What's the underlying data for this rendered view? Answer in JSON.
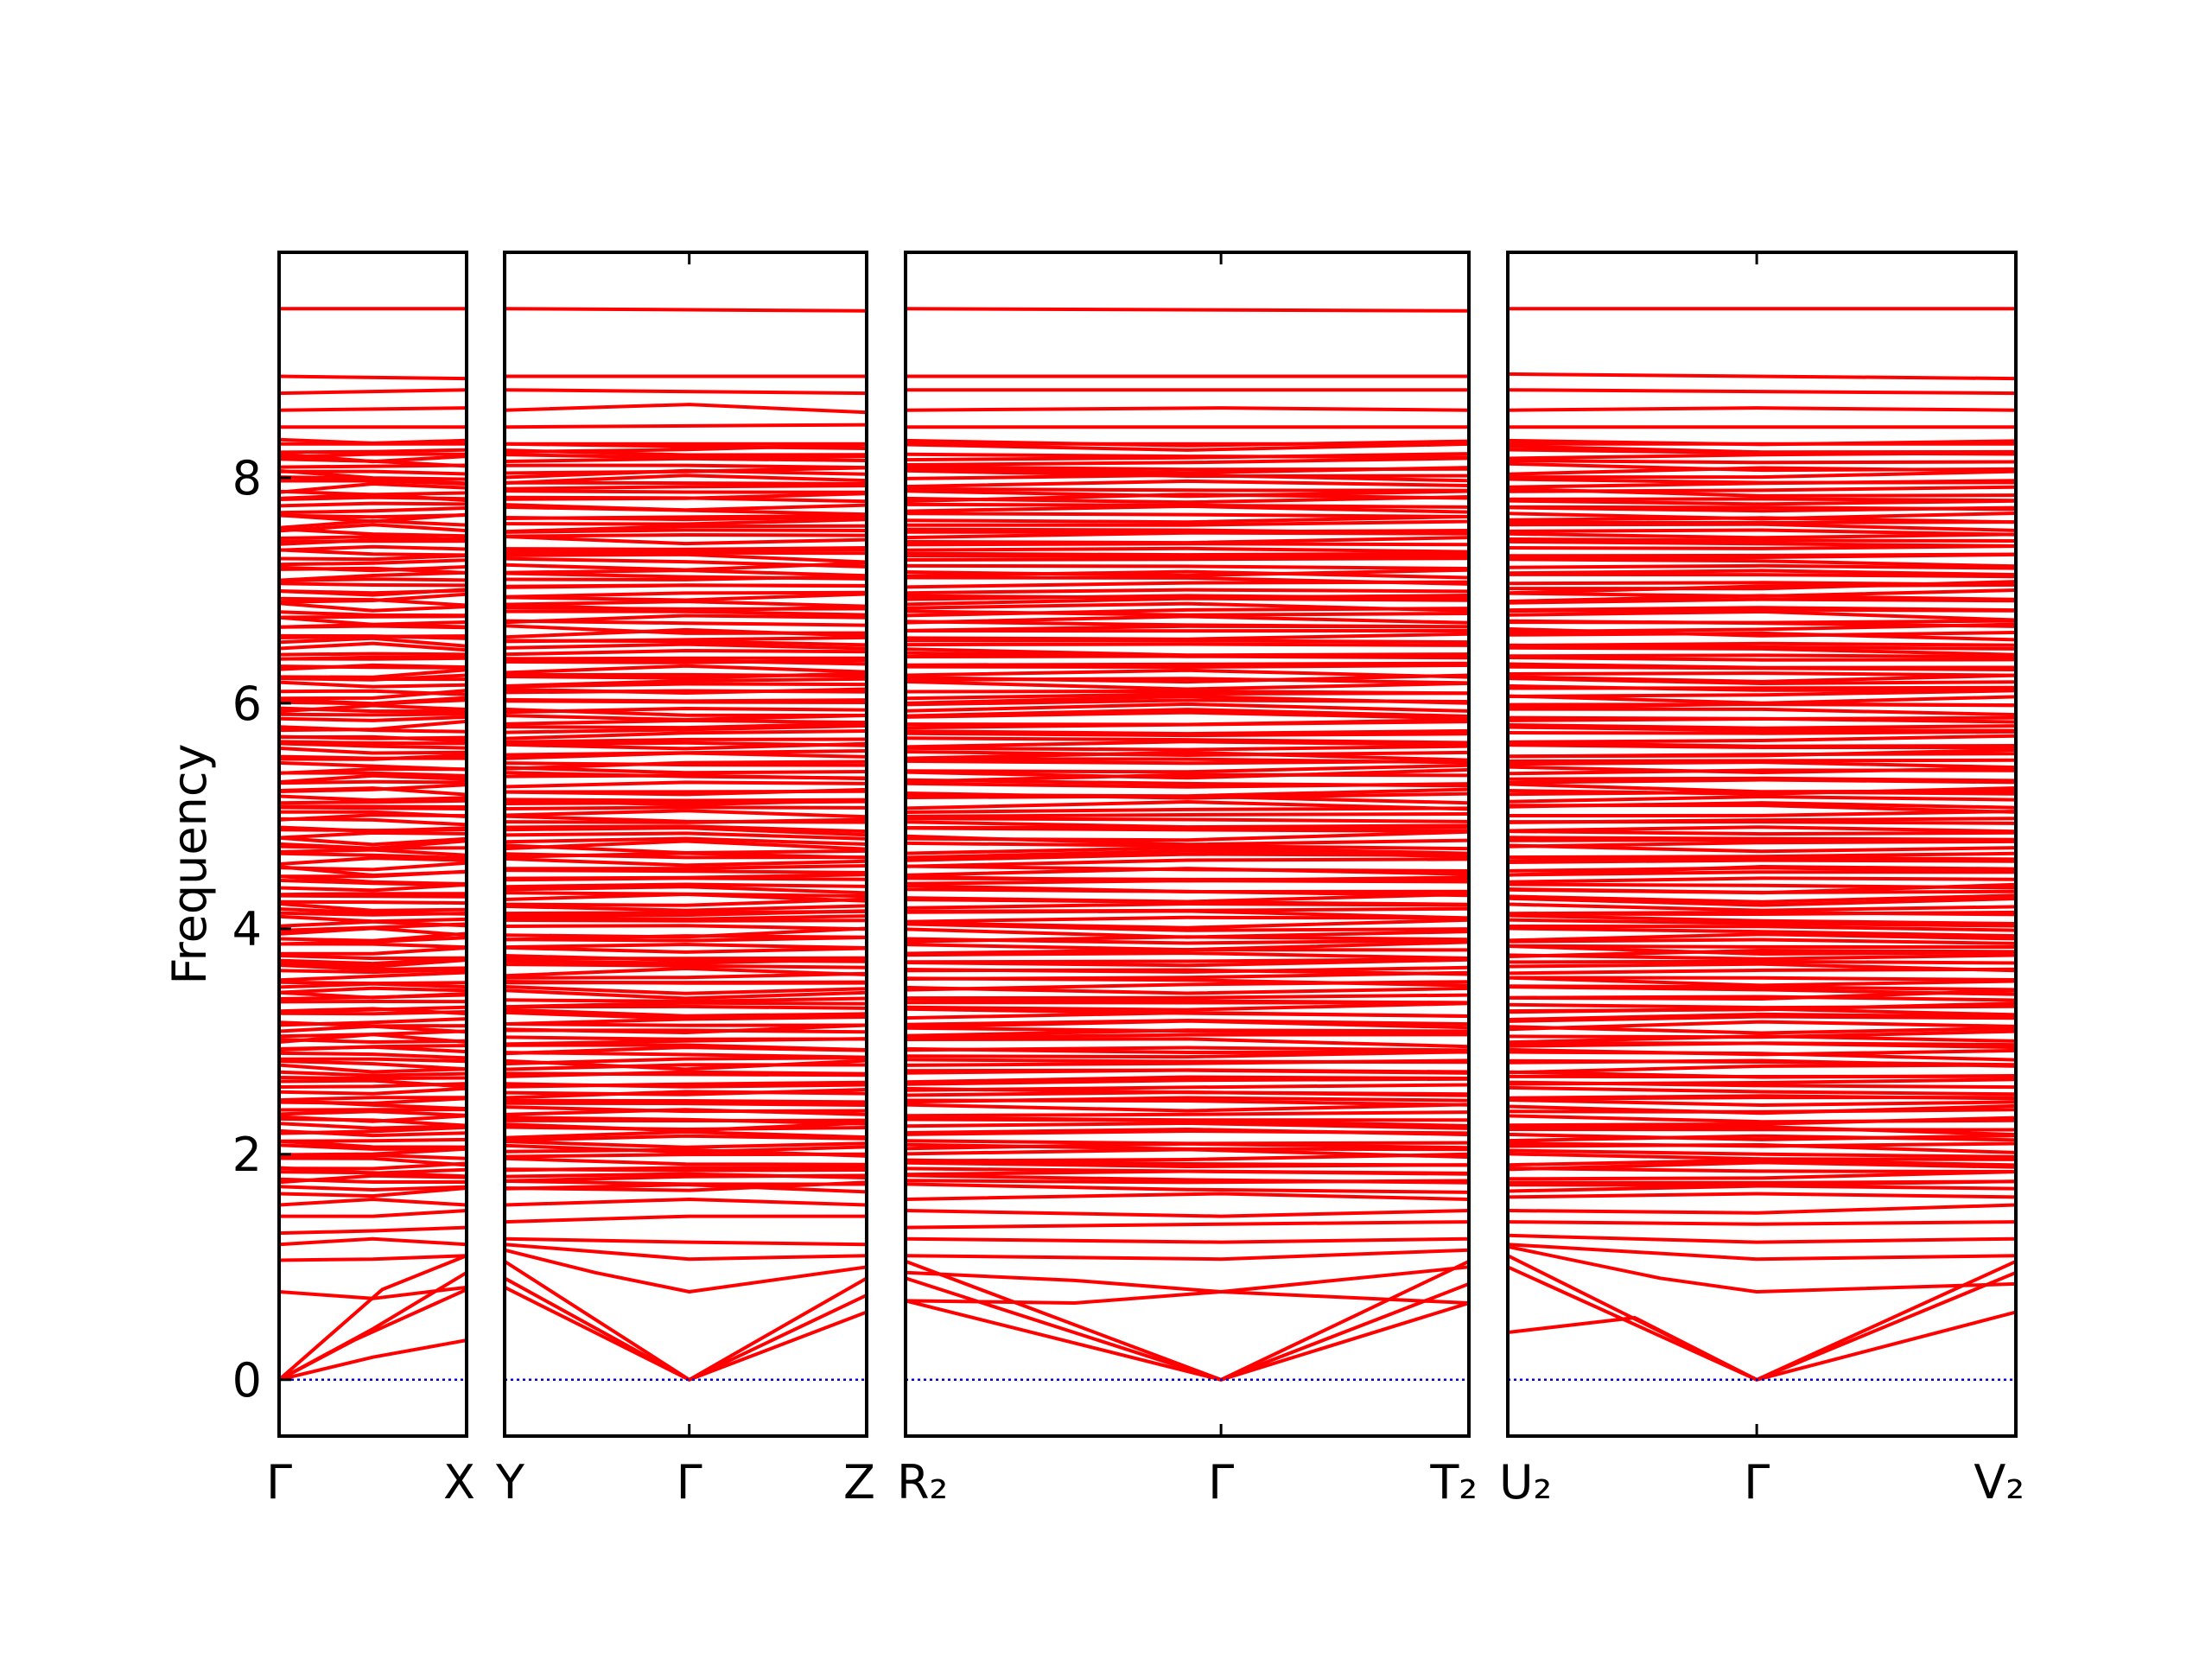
{
  "chart_data": {
    "type": "line",
    "title": "",
    "ylabel": "Frequency",
    "ylim": [
      -0.5,
      10.0
    ],
    "yticks": [
      0,
      2,
      4,
      6,
      8
    ],
    "yticklabels": [
      "0",
      "2",
      "4",
      "6",
      "8"
    ],
    "grid": false,
    "legend": "none",
    "colors": {
      "bands": "#ff0000",
      "zero_line": "#0000cc",
      "axes": "#000000"
    },
    "panels": [
      {
        "name": "panel-1",
        "path": [
          "Γ",
          "X"
        ],
        "ticks": [
          {
            "x": 0,
            "label": "Γ"
          },
          {
            "x": 1,
            "label": "X"
          }
        ],
        "bands": [
          [
            [
              0,
              0
            ],
            [
              0.5,
              0.45
            ],
            [
              1,
              0.95
            ]
          ],
          [
            [
              0,
              0
            ],
            [
              0.5,
              0.2
            ],
            [
              1,
              0.35
            ]
          ],
          [
            [
              0,
              0
            ],
            [
              0.4,
              0.35
            ],
            [
              1,
              0.8
            ]
          ],
          [
            [
              0,
              0
            ],
            [
              0.55,
              0.8
            ],
            [
              1,
              1.1
            ]
          ],
          [
            [
              0,
              0.78
            ],
            [
              0.5,
              0.72
            ],
            [
              1,
              0.82
            ]
          ],
          [
            [
              0,
              1.06
            ],
            [
              0.5,
              1.07
            ],
            [
              1,
              1.1
            ]
          ],
          [
            [
              0,
              1.2
            ],
            [
              0.5,
              1.25
            ],
            [
              1,
              1.2
            ]
          ],
          [
            [
              0,
              1.3
            ],
            [
              0.5,
              1.32
            ],
            [
              1,
              1.35
            ]
          ],
          [
            [
              0,
              1.45
            ],
            [
              0.5,
              1.45
            ],
            [
              1,
              1.5
            ]
          ],
          [
            [
              0,
              1.55
            ],
            [
              0.5,
              1.6
            ],
            [
              1,
              1.55
            ]
          ],
          [
            [
              0,
              1.65
            ],
            [
              0.5,
              1.63
            ],
            [
              1,
              1.7
            ]
          ],
          [
            [
              0,
              8.9
            ],
            [
              1,
              8.88
            ]
          ],
          [
            [
              0,
              8.75
            ],
            [
              1,
              8.78
            ]
          ],
          [
            [
              0,
              8.6
            ],
            [
              1,
              8.62
            ]
          ],
          [
            [
              0,
              8.45
            ],
            [
              1,
              8.45
            ]
          ],
          [
            [
              0,
              8.3
            ],
            [
              1,
              8.3
            ]
          ],
          [
            [
              0,
              9.5
            ],
            [
              1,
              9.5
            ]
          ]
        ]
      },
      {
        "name": "panel-2",
        "path": [
          "Y",
          "Γ",
          "Z"
        ],
        "ticks": [
          {
            "x": 0,
            "label": "Y"
          },
          {
            "x": 0.51,
            "label": "Γ"
          },
          {
            "x": 1,
            "label": "Z"
          }
        ],
        "bands": [
          [
            [
              0,
              0.82
            ],
            [
              0.51,
              0
            ],
            [
              1,
              0.6
            ]
          ],
          [
            [
              0,
              0.9
            ],
            [
              0.51,
              0
            ],
            [
              1,
              0.75
            ]
          ],
          [
            [
              0,
              1.05
            ],
            [
              0.51,
              0
            ],
            [
              1,
              0.9
            ]
          ],
          [
            [
              0,
              1.15
            ],
            [
              0.25,
              0.95
            ],
            [
              0.51,
              0.78
            ],
            [
              1,
              1.0
            ]
          ],
          [
            [
              0,
              1.2
            ],
            [
              0.51,
              1.07
            ],
            [
              1,
              1.1
            ]
          ],
          [
            [
              0,
              1.25
            ],
            [
              0.51,
              1.22
            ],
            [
              1,
              1.2
            ]
          ],
          [
            [
              0,
              1.4
            ],
            [
              0.51,
              1.45
            ],
            [
              1,
              1.45
            ]
          ],
          [
            [
              0,
              1.55
            ],
            [
              0.51,
              1.6
            ],
            [
              1,
              1.55
            ]
          ],
          [
            [
              0,
              1.7
            ],
            [
              0.51,
              1.68
            ],
            [
              1,
              1.75
            ]
          ],
          [
            [
              0,
              8.9
            ],
            [
              1,
              8.9
            ]
          ],
          [
            [
              0,
              8.78
            ],
            [
              1,
              8.75
            ]
          ],
          [
            [
              0,
              8.6
            ],
            [
              0.51,
              8.65
            ],
            [
              1,
              8.58
            ]
          ],
          [
            [
              0,
              8.45
            ],
            [
              1,
              8.47
            ]
          ],
          [
            [
              0,
              8.3
            ],
            [
              1,
              8.3
            ]
          ],
          [
            [
              0,
              9.5
            ],
            [
              1,
              9.48
            ]
          ]
        ]
      },
      {
        "name": "panel-3",
        "path": [
          "R₂",
          "Γ",
          "T₂"
        ],
        "ticks": [
          {
            "x": 0,
            "label": "R₂"
          },
          {
            "x": 0.56,
            "label": "Γ"
          },
          {
            "x": 1,
            "label": "T₂"
          }
        ],
        "bands": [
          [
            [
              0,
              0.7
            ],
            [
              0.56,
              0
            ],
            [
              1,
              0.68
            ]
          ],
          [
            [
              0,
              0.9
            ],
            [
              0.56,
              0
            ],
            [
              1,
              0.85
            ]
          ],
          [
            [
              0,
              1.05
            ],
            [
              0.56,
              0
            ],
            [
              1,
              1.05
            ]
          ],
          [
            [
              0,
              0.7
            ],
            [
              0.3,
              0.68
            ],
            [
              0.56,
              0.78
            ],
            [
              1,
              0.68
            ]
          ],
          [
            [
              0,
              0.95
            ],
            [
              0.3,
              0.88
            ],
            [
              0.56,
              0.78
            ],
            [
              1,
              1.0
            ]
          ],
          [
            [
              0,
              1.1
            ],
            [
              0.56,
              1.07
            ],
            [
              1,
              1.15
            ]
          ],
          [
            [
              0,
              1.25
            ],
            [
              0.56,
              1.22
            ],
            [
              1,
              1.25
            ]
          ],
          [
            [
              0,
              1.35
            ],
            [
              0.56,
              1.38
            ],
            [
              1,
              1.4
            ]
          ],
          [
            [
              0,
              1.5
            ],
            [
              0.56,
              1.45
            ],
            [
              1,
              1.5
            ]
          ],
          [
            [
              0,
              1.6
            ],
            [
              0.56,
              1.65
            ],
            [
              1,
              1.6
            ]
          ],
          [
            [
              0,
              8.9
            ],
            [
              1,
              8.9
            ]
          ],
          [
            [
              0,
              8.78
            ],
            [
              1,
              8.78
            ]
          ],
          [
            [
              0,
              8.6
            ],
            [
              0.56,
              8.62
            ],
            [
              1,
              8.6
            ]
          ],
          [
            [
              0,
              8.45
            ],
            [
              1,
              8.45
            ]
          ],
          [
            [
              0,
              8.3
            ],
            [
              1,
              8.3
            ]
          ],
          [
            [
              0,
              9.5
            ],
            [
              1,
              9.48
            ]
          ]
        ]
      },
      {
        "name": "panel-4",
        "path": [
          "U₂",
          "Γ",
          "V₂"
        ],
        "ticks": [
          {
            "x": 0,
            "label": "U₂"
          },
          {
            "x": 0.49,
            "label": "Γ"
          },
          {
            "x": 1,
            "label": "V₂"
          }
        ],
        "bands": [
          [
            [
              0,
              0.42
            ],
            [
              0.25,
              0.55
            ],
            [
              0.49,
              0
            ],
            [
              1,
              0.6
            ]
          ],
          [
            [
              0,
              1.0
            ],
            [
              0.49,
              0
            ],
            [
              1,
              0.95
            ]
          ],
          [
            [
              0,
              1.1
            ],
            [
              0.49,
              0
            ],
            [
              1,
              1.05
            ]
          ],
          [
            [
              0,
              1.18
            ],
            [
              0.3,
              0.9
            ],
            [
              0.49,
              0.78
            ],
            [
              1,
              0.85
            ]
          ],
          [
            [
              0,
              1.2
            ],
            [
              0.49,
              1.07
            ],
            [
              1,
              1.1
            ]
          ],
          [
            [
              0,
              1.28
            ],
            [
              0.49,
              1.22
            ],
            [
              1,
              1.25
            ]
          ],
          [
            [
              0,
              1.4
            ],
            [
              0.49,
              1.38
            ],
            [
              1,
              1.4
            ]
          ],
          [
            [
              0,
              1.5
            ],
            [
              0.49,
              1.48
            ],
            [
              1,
              1.55
            ]
          ],
          [
            [
              0,
              1.62
            ],
            [
              0.49,
              1.65
            ],
            [
              1,
              1.62
            ]
          ],
          [
            [
              0,
              8.92
            ],
            [
              1,
              8.88
            ]
          ],
          [
            [
              0,
              8.78
            ],
            [
              1,
              8.75
            ]
          ],
          [
            [
              0,
              8.6
            ],
            [
              0.49,
              8.62
            ],
            [
              1,
              8.6
            ]
          ],
          [
            [
              0,
              8.45
            ],
            [
              1,
              8.45
            ]
          ],
          [
            [
              0,
              8.3
            ],
            [
              1,
              8.3
            ]
          ],
          [
            [
              0,
              9.5
            ],
            [
              1,
              9.5
            ]
          ]
        ]
      }
    ],
    "dense_band_range": [
      1.7,
      8.3
    ]
  }
}
